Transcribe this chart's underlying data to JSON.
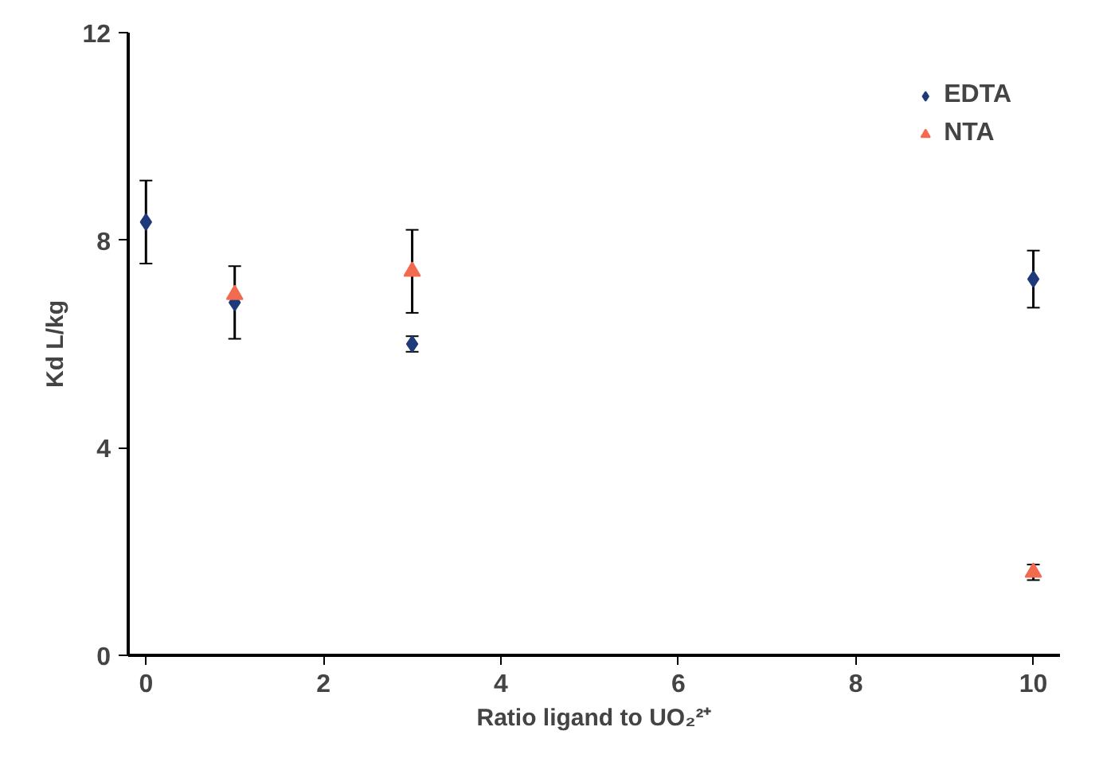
{
  "chart_data": {
    "type": "scatter",
    "xlabel": "Ratio ligand to UO₂²⁺",
    "ylabel": "Kd L/kg",
    "x": [
      0,
      1,
      3,
      10
    ],
    "series": [
      {
        "name": "EDTA",
        "color": "#1f3a7a",
        "marker": "diamond",
        "values": [
          8.35,
          6.8,
          6.0,
          7.25
        ],
        "errors": [
          0.8,
          0.7,
          0.15,
          0.55
        ]
      },
      {
        "name": "NTA",
        "color": "#f26a4f",
        "marker": "triangle",
        "values": [
          null,
          6.95,
          7.4,
          1.6
        ],
        "errors": [
          null,
          null,
          0.8,
          0.15
        ]
      }
    ],
    "xlim": [
      -0.2,
      10.3
    ],
    "ylim": [
      0,
      12
    ],
    "xticks": [
      0,
      2,
      4,
      6,
      8,
      10
    ],
    "yticks": [
      0,
      4,
      8,
      12
    ],
    "grid": false,
    "legend": "top right"
  }
}
